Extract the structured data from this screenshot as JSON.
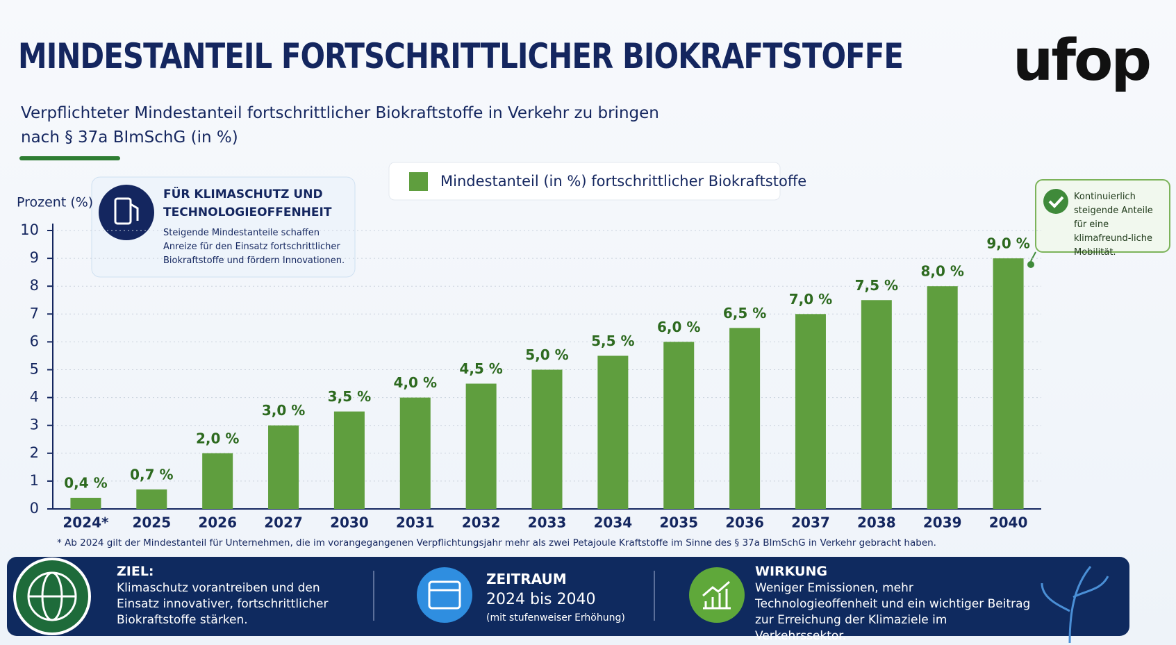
{
  "header": {
    "title": "MINDESTANTEIL FORTSCHRITTLICHER BIOKRAFTSTOFFE",
    "logo": "ufop",
    "subtitle_line1": "Verpflichteter Mindestanteil fortschrittlicher Biokraftstoffe in Verkehr zu bringen",
    "subtitle_line2": "nach § 37a BImSchG (in %)"
  },
  "info_box": {
    "title_line1": "FÜR KLIMASCHUTZ UND",
    "title_line2": "TECHNOLOGIEOFFENHEIT",
    "text": "Steigende Mindestanteile schaffen Anreize für den Einsatz fortschrittlicher Biokraftstoffe und fördern Innovationen."
  },
  "callout": {
    "text": "Kontinuierlich steigende Anteile für eine klimafreund-liche Mobilität."
  },
  "chart_data": {
    "type": "bar",
    "y_label": "Prozent (%)",
    "legend_label": "Mindestanteil (in %) fortschrittlicher Biokraftstoffe",
    "categories": [
      "2024*",
      "2025",
      "2026",
      "2027",
      "2030",
      "2031",
      "2032",
      "2033",
      "2034",
      "2035",
      "2036",
      "2037",
      "2038",
      "2039",
      "2040"
    ],
    "values": [
      0.4,
      0.7,
      2.0,
      3.0,
      3.5,
      4.0,
      4.5,
      5.0,
      5.5,
      6.0,
      6.5,
      7.0,
      7.5,
      8.0,
      9.0
    ],
    "value_labels": [
      "0,4 %",
      "0,7 %",
      "2,0 %",
      "3,0 %",
      "3,5 %",
      "4,0 %",
      "4,5 %",
      "5,0 %",
      "5,5 %",
      "6,0 %",
      "6,5 %",
      "7,0 %",
      "7,5 %",
      "8,0 %",
      "9,0 %"
    ],
    "color": "#5f9e3e",
    "ylim": [
      0,
      10
    ],
    "yticks": [
      0,
      1,
      2,
      3,
      4,
      5,
      6,
      7,
      8,
      9,
      10
    ],
    "grid": true
  },
  "footnote": "* Ab 2024 gilt der Mindestanteil für Unternehmen, die im vorangegangenen Verpflichtungsjahr mehr als zwei Petajoule Kraftstoffe im Sinne des § 37a BImSchG in Verkehr gebracht haben.",
  "footer": {
    "ziel_title": "ZIEL:",
    "ziel_text": "Klimaschutz vorantreiben und den Einsatz innovativer, fortschrittlicher Biokraftstoffe stärken.",
    "zeitraum_title": "ZEITRAUM",
    "zeitraum_range": "2024 bis 2040",
    "zeitraum_note": "(mit stufenweiser Erhöhung)",
    "wirkung_title": "WIRKUNG",
    "wirkung_text": "Weniger Emissionen, mehr Technologieoffenheit und ein wichtiger Beitrag zur Erreichung der Klimaziele im Verkehrssektor."
  }
}
